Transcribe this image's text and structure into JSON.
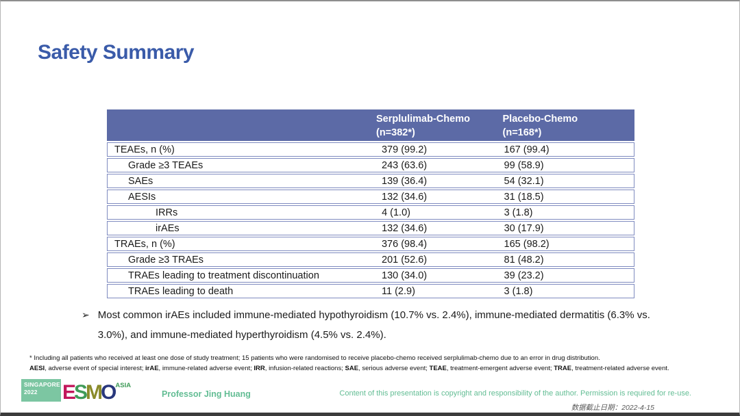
{
  "slide": {
    "title": "Safety Summary",
    "accent_color": "#3a5ba9",
    "green_color": "#63bd94"
  },
  "table": {
    "header_bg_color": "#5c6aa6",
    "border_color": "#7e8abf",
    "columns": {
      "col2_line1": "Serplulimab-Chemo",
      "col2_line2": "(n=382*)",
      "col3_line1": "Placebo-Chemo",
      "col3_line2": "(n=168*)"
    },
    "rows": [
      {
        "label": "TEAEs, n (%)",
        "indent": 0,
        "serplulimab": "379 (99.2)",
        "placebo": "167 (99.4)"
      },
      {
        "label": "Grade ≥3 TEAEs",
        "indent": 1,
        "serplulimab": "243 (63.6)",
        "placebo": "99 (58.9)"
      },
      {
        "label": "SAEs",
        "indent": 1,
        "serplulimab": "139 (36.4)",
        "placebo": "54 (32.1)"
      },
      {
        "label": "AESIs",
        "indent": 1,
        "serplulimab": "132 (34.6)",
        "placebo": "31 (18.5)"
      },
      {
        "label": "IRRs",
        "indent": 2,
        "serplulimab": "4 (1.0)",
        "placebo": "3 (1.8)"
      },
      {
        "label": "irAEs",
        "indent": 2,
        "serplulimab": "132 (34.6)",
        "placebo": "30 (17.9)"
      },
      {
        "label": "TRAEs, n (%)",
        "indent": 0,
        "serplulimab": "376 (98.4)",
        "placebo": "165 (98.2)"
      },
      {
        "label": "Grade ≥3 TRAEs",
        "indent": 1,
        "serplulimab": "201 (52.6)",
        "placebo": "81 (48.2)"
      },
      {
        "label": "TRAEs leading to treatment discontinuation",
        "indent": 1,
        "serplulimab": "130 (34.0)",
        "placebo": "39 (23.2)"
      },
      {
        "label": "TRAEs leading to death",
        "indent": 1,
        "serplulimab": "11 (2.9)",
        "placebo": "3 (1.8)"
      }
    ]
  },
  "bullet": {
    "marker": "➢",
    "text": "Most common irAEs included immune-mediated hypothyroidism (10.7% vs. 2.4%), immune-mediated dermatitis (6.3% vs. 3.0%), and immune-mediated hyperthyroidism (4.5% vs. 2.4%)."
  },
  "footnotes": {
    "line1": "* Including all patients who received at least one dose of study treatment; 15 patients who were randomised to receive placebo-chemo received serplulimab-chemo due to an error in drug distribution.",
    "segments": [
      {
        "text": "AESI",
        "bold": true
      },
      {
        "text": ", adverse event of special interest; ",
        "bold": false
      },
      {
        "text": "irAE",
        "bold": true
      },
      {
        "text": ", immune-related adverse event; ",
        "bold": false
      },
      {
        "text": "IRR",
        "bold": true
      },
      {
        "text": ", infusion-related reactions; ",
        "bold": false
      },
      {
        "text": "SAE",
        "bold": true
      },
      {
        "text": ", serious adverse event; ",
        "bold": false
      },
      {
        "text": "TEAE",
        "bold": true
      },
      {
        "text": ", treatment-emergent adverse event; ",
        "bold": false
      },
      {
        "text": "TRAE",
        "bold": true
      },
      {
        "text": ", treatment-related adverse event.",
        "bold": false
      }
    ]
  },
  "footer": {
    "logo": {
      "location": "SINGAPORE",
      "year": "2022",
      "letters": [
        {
          "char": "E",
          "color": "#c2175b"
        },
        {
          "char": "S",
          "color": "#3f9b58"
        },
        {
          "char": "M",
          "color": "#8a8b2a"
        },
        {
          "char": "O",
          "color": "#28377c"
        }
      ],
      "region": "ASIA",
      "box_color": "#7cc6a2"
    },
    "presenter": "Professor Jing Huang",
    "copyright": "Content of this presentation is copyright and responsibility of the author. Permission is required for re-use.",
    "data_cutoff": "数据截止日期：2022-4-15"
  }
}
